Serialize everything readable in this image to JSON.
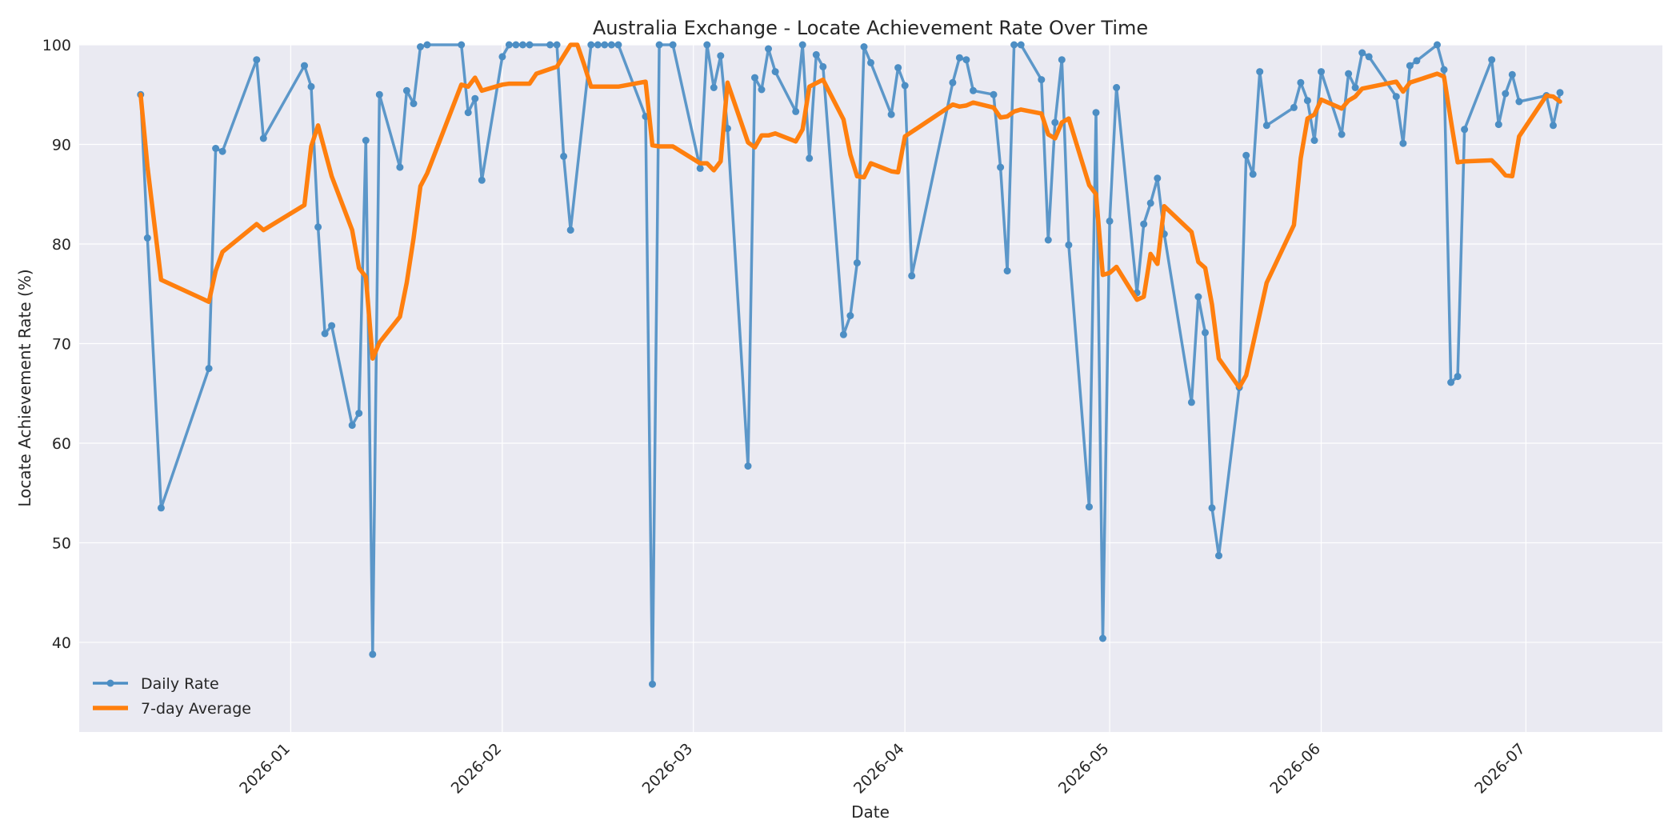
{
  "chart_data": {
    "type": "line",
    "title": "Australia Exchange - Locate Achievement Rate Over Time",
    "xlabel": "Date",
    "ylabel": "Locate Achievement Rate (%)",
    "xlim": [
      "2025-12-01",
      "2026-07-21"
    ],
    "ylim": [
      31,
      100
    ],
    "yticks": [
      40,
      50,
      60,
      70,
      80,
      90,
      100
    ],
    "xticks": [
      "2026-01-01",
      "2026-02-01",
      "2026-03-01",
      "2026-04-01",
      "2026-05-01",
      "2026-06-01",
      "2026-07-01"
    ],
    "xtick_labels": [
      "2026-01",
      "2026-02",
      "2026-03",
      "2026-04",
      "2026-05",
      "2026-06",
      "2026-07"
    ],
    "grid": true,
    "legend_position": "lower-left",
    "colors": {
      "daily": "#4c8ec4",
      "average": "#ff7f0e",
      "plot_bg": "#eaeaf2",
      "grid": "#ffffff"
    },
    "series": [
      {
        "name": "Daily Rate",
        "style": "line-with-markers",
        "points": [
          [
            "2025-12-10",
            95.0
          ],
          [
            "2025-12-11",
            80.6
          ],
          [
            "2025-12-13",
            53.5
          ],
          [
            "2025-12-20",
            67.5
          ],
          [
            "2025-12-21",
            89.6
          ],
          [
            "2025-12-22",
            89.3
          ],
          [
            "2025-12-27",
            98.5
          ],
          [
            "2025-12-28",
            90.6
          ],
          [
            "2026-01-03",
            97.9
          ],
          [
            "2026-01-04",
            95.8
          ],
          [
            "2026-01-05",
            81.7
          ],
          [
            "2026-01-06",
            71.0
          ],
          [
            "2026-01-07",
            71.8
          ],
          [
            "2026-01-10",
            61.8
          ],
          [
            "2026-01-11",
            63.0
          ],
          [
            "2026-01-12",
            90.4
          ],
          [
            "2026-01-13",
            38.8
          ],
          [
            "2026-01-14",
            95.0
          ],
          [
            "2026-01-17",
            87.7
          ],
          [
            "2026-01-18",
            95.4
          ],
          [
            "2026-01-19",
            94.1
          ],
          [
            "2026-01-20",
            99.8
          ],
          [
            "2026-01-21",
            100.0
          ],
          [
            "2026-01-26",
            100.0
          ],
          [
            "2026-01-27",
            93.2
          ],
          [
            "2026-01-28",
            94.6
          ],
          [
            "2026-01-29",
            86.4
          ],
          [
            "2026-02-01",
            98.8
          ],
          [
            "2026-02-02",
            100.0
          ],
          [
            "2026-02-03",
            100.0
          ],
          [
            "2026-02-04",
            100.0
          ],
          [
            "2026-02-05",
            100.0
          ],
          [
            "2026-02-08",
            100.0
          ],
          [
            "2026-02-09",
            100.0
          ],
          [
            "2026-02-10",
            88.8
          ],
          [
            "2026-02-11",
            81.4
          ],
          [
            "2026-02-14",
            100.0
          ],
          [
            "2026-02-15",
            100.0
          ],
          [
            "2026-02-16",
            100.0
          ],
          [
            "2026-02-17",
            100.0
          ],
          [
            "2026-02-18",
            100.0
          ],
          [
            "2026-02-22",
            92.8
          ],
          [
            "2026-02-23",
            35.8
          ],
          [
            "2026-02-24",
            100.0
          ],
          [
            "2026-02-26",
            100.0
          ],
          [
            "2026-03-02",
            87.6
          ],
          [
            "2026-03-03",
            100.0
          ],
          [
            "2026-03-04",
            95.7
          ],
          [
            "2026-03-05",
            98.9
          ],
          [
            "2026-03-06",
            91.6
          ],
          [
            "2026-03-09",
            57.7
          ],
          [
            "2026-03-10",
            96.7
          ],
          [
            "2026-03-11",
            95.5
          ],
          [
            "2026-03-12",
            99.6
          ],
          [
            "2026-03-13",
            97.3
          ],
          [
            "2026-03-16",
            93.3
          ],
          [
            "2026-03-17",
            100.0
          ],
          [
            "2026-03-18",
            88.6
          ],
          [
            "2026-03-19",
            99.0
          ],
          [
            "2026-03-20",
            97.8
          ],
          [
            "2026-03-23",
            70.9
          ],
          [
            "2026-03-24",
            72.8
          ],
          [
            "2026-03-25",
            78.1
          ],
          [
            "2026-03-26",
            99.8
          ],
          [
            "2026-03-27",
            98.2
          ],
          [
            "2026-03-30",
            93.0
          ],
          [
            "2026-03-31",
            97.7
          ],
          [
            "2026-04-01",
            95.9
          ],
          [
            "2026-04-02",
            76.8
          ],
          [
            "2026-04-08",
            96.2
          ],
          [
            "2026-04-09",
            98.7
          ],
          [
            "2026-04-10",
            98.5
          ],
          [
            "2026-04-11",
            95.4
          ],
          [
            "2026-04-14",
            95.0
          ],
          [
            "2026-04-15",
            87.7
          ],
          [
            "2026-04-16",
            77.3
          ],
          [
            "2026-04-17",
            100.0
          ],
          [
            "2026-04-18",
            100.0
          ],
          [
            "2026-04-21",
            96.5
          ],
          [
            "2026-04-22",
            80.4
          ],
          [
            "2026-04-23",
            92.2
          ],
          [
            "2026-04-24",
            98.5
          ],
          [
            "2026-04-25",
            79.9
          ],
          [
            "2026-04-28",
            53.6
          ],
          [
            "2026-04-29",
            93.2
          ],
          [
            "2026-04-30",
            40.4
          ],
          [
            "2026-05-01",
            82.3
          ],
          [
            "2026-05-02",
            95.7
          ],
          [
            "2026-05-05",
            75.1
          ],
          [
            "2026-05-06",
            82.0
          ],
          [
            "2026-05-07",
            84.1
          ],
          [
            "2026-05-08",
            86.6
          ],
          [
            "2026-05-09",
            81.0
          ],
          [
            "2026-05-13",
            64.1
          ],
          [
            "2026-05-14",
            74.7
          ],
          [
            "2026-05-15",
            71.1
          ],
          [
            "2026-05-16",
            53.5
          ],
          [
            "2026-05-17",
            48.7
          ],
          [
            "2026-05-20",
            65.6
          ],
          [
            "2026-05-21",
            88.9
          ],
          [
            "2026-05-22",
            87.0
          ],
          [
            "2026-05-23",
            97.3
          ],
          [
            "2026-05-24",
            91.9
          ],
          [
            "2026-05-28",
            93.7
          ],
          [
            "2026-05-29",
            96.2
          ],
          [
            "2026-05-30",
            94.4
          ],
          [
            "2026-05-31",
            90.4
          ],
          [
            "2026-06-01",
            97.3
          ],
          [
            "2026-06-04",
            91.0
          ],
          [
            "2026-06-05",
            97.1
          ],
          [
            "2026-06-06",
            95.7
          ],
          [
            "2026-06-07",
            99.2
          ],
          [
            "2026-06-08",
            98.8
          ],
          [
            "2026-06-12",
            94.8
          ],
          [
            "2026-06-13",
            90.1
          ],
          [
            "2026-06-14",
            97.9
          ],
          [
            "2026-06-15",
            98.4
          ],
          [
            "2026-06-18",
            100.0
          ],
          [
            "2026-06-19",
            97.5
          ],
          [
            "2026-06-20",
            66.1
          ],
          [
            "2026-06-21",
            66.7
          ],
          [
            "2026-06-22",
            91.5
          ],
          [
            "2026-06-26",
            98.5
          ],
          [
            "2026-06-27",
            92.0
          ],
          [
            "2026-06-28",
            95.1
          ],
          [
            "2026-06-29",
            97.0
          ],
          [
            "2026-06-30",
            94.3
          ],
          [
            "2026-07-04",
            94.9
          ],
          [
            "2026-07-05",
            91.9
          ],
          [
            "2026-07-06",
            95.2
          ]
        ]
      },
      {
        "name": "7-day Average",
        "style": "thick-line",
        "points": [
          [
            "2025-12-10",
            95.0
          ],
          [
            "2025-12-11",
            87.8
          ],
          [
            "2025-12-13",
            76.4
          ],
          [
            "2025-12-20",
            74.2
          ],
          [
            "2025-12-21",
            77.3
          ],
          [
            "2025-12-22",
            79.2
          ],
          [
            "2025-12-27",
            82.0
          ],
          [
            "2025-12-28",
            81.4
          ],
          [
            "2026-01-03",
            83.9
          ],
          [
            "2026-01-04",
            89.8
          ],
          [
            "2026-01-05",
            91.9
          ],
          [
            "2026-01-07",
            86.8
          ],
          [
            "2026-01-10",
            81.4
          ],
          [
            "2026-01-11",
            77.6
          ],
          [
            "2026-01-12",
            76.7
          ],
          [
            "2026-01-13",
            68.5
          ],
          [
            "2026-01-14",
            70.1
          ],
          [
            "2026-01-17",
            72.7
          ],
          [
            "2026-01-18",
            76.1
          ],
          [
            "2026-01-19",
            80.6
          ],
          [
            "2026-01-20",
            85.8
          ],
          [
            "2026-01-21",
            87.1
          ],
          [
            "2026-01-26",
            96.0
          ],
          [
            "2026-01-27",
            95.8
          ],
          [
            "2026-01-28",
            96.7
          ],
          [
            "2026-01-29",
            95.4
          ],
          [
            "2026-02-01",
            96.0
          ],
          [
            "2026-02-02",
            96.1
          ],
          [
            "2026-02-05",
            96.1
          ],
          [
            "2026-02-06",
            97.1
          ],
          [
            "2026-02-09",
            97.8
          ],
          [
            "2026-02-10",
            98.9
          ],
          [
            "2026-02-11",
            100.0
          ],
          [
            "2026-02-12",
            100.0
          ],
          [
            "2026-02-13",
            98.0
          ],
          [
            "2026-02-14",
            95.8
          ],
          [
            "2026-02-18",
            95.8
          ],
          [
            "2026-02-22",
            96.3
          ],
          [
            "2026-02-23",
            89.9
          ],
          [
            "2026-02-24",
            89.8
          ],
          [
            "2026-02-26",
            89.8
          ],
          [
            "2026-03-02",
            88.1
          ],
          [
            "2026-03-03",
            88.1
          ],
          [
            "2026-03-04",
            87.4
          ],
          [
            "2026-03-05",
            88.3
          ],
          [
            "2026-03-06",
            96.2
          ],
          [
            "2026-03-09",
            90.2
          ],
          [
            "2026-03-10",
            89.7
          ],
          [
            "2026-03-11",
            90.9
          ],
          [
            "2026-03-12",
            90.9
          ],
          [
            "2026-03-13",
            91.1
          ],
          [
            "2026-03-16",
            90.3
          ],
          [
            "2026-03-17",
            91.5
          ],
          [
            "2026-03-18",
            95.8
          ],
          [
            "2026-03-20",
            96.5
          ],
          [
            "2026-03-23",
            92.5
          ],
          [
            "2026-03-24",
            89.0
          ],
          [
            "2026-03-25",
            86.8
          ],
          [
            "2026-03-26",
            86.7
          ],
          [
            "2026-03-27",
            88.1
          ],
          [
            "2026-03-30",
            87.3
          ],
          [
            "2026-03-31",
            87.2
          ],
          [
            "2026-04-01",
            90.8
          ],
          [
            "2026-04-08",
            94.0
          ],
          [
            "2026-04-09",
            93.8
          ],
          [
            "2026-04-10",
            93.9
          ],
          [
            "2026-04-11",
            94.2
          ],
          [
            "2026-04-14",
            93.7
          ],
          [
            "2026-04-15",
            92.7
          ],
          [
            "2026-04-16",
            92.8
          ],
          [
            "2026-04-17",
            93.3
          ],
          [
            "2026-04-18",
            93.5
          ],
          [
            "2026-04-21",
            93.1
          ],
          [
            "2026-04-22",
            91.0
          ],
          [
            "2026-04-23",
            90.6
          ],
          [
            "2026-04-24",
            92.2
          ],
          [
            "2026-04-25",
            92.6
          ],
          [
            "2026-04-28",
            85.9
          ],
          [
            "2026-04-29",
            85.0
          ],
          [
            "2026-04-30",
            76.9
          ],
          [
            "2026-05-01",
            77.1
          ],
          [
            "2026-05-02",
            77.7
          ],
          [
            "2026-05-05",
            74.4
          ],
          [
            "2026-05-06",
            74.7
          ],
          [
            "2026-05-07",
            79.0
          ],
          [
            "2026-05-08",
            78.0
          ],
          [
            "2026-05-09",
            83.8
          ],
          [
            "2026-05-13",
            81.2
          ],
          [
            "2026-05-14",
            78.2
          ],
          [
            "2026-05-15",
            77.6
          ],
          [
            "2026-05-16",
            73.9
          ],
          [
            "2026-05-17",
            68.5
          ],
          [
            "2026-05-20",
            65.6
          ],
          [
            "2026-05-21",
            66.8
          ],
          [
            "2026-05-24",
            76.1
          ],
          [
            "2026-05-28",
            81.9
          ],
          [
            "2026-05-29",
            88.6
          ],
          [
            "2026-05-30",
            92.6
          ],
          [
            "2026-05-31",
            93.0
          ],
          [
            "2026-06-01",
            94.5
          ],
          [
            "2026-06-04",
            93.6
          ],
          [
            "2026-06-05",
            94.4
          ],
          [
            "2026-06-06",
            94.8
          ],
          [
            "2026-06-07",
            95.6
          ],
          [
            "2026-06-12",
            96.3
          ],
          [
            "2026-06-13",
            95.3
          ],
          [
            "2026-06-14",
            96.2
          ],
          [
            "2026-06-18",
            97.1
          ],
          [
            "2026-06-19",
            96.8
          ],
          [
            "2026-06-20",
            92.4
          ],
          [
            "2026-06-21",
            88.2
          ],
          [
            "2026-06-22",
            88.3
          ],
          [
            "2026-06-26",
            88.4
          ],
          [
            "2026-06-27",
            87.7
          ],
          [
            "2026-06-28",
            86.9
          ],
          [
            "2026-06-29",
            86.8
          ],
          [
            "2026-06-30",
            90.8
          ],
          [
            "2026-07-04",
            94.9
          ],
          [
            "2026-07-05",
            94.8
          ],
          [
            "2026-07-06",
            94.3
          ]
        ]
      }
    ]
  }
}
